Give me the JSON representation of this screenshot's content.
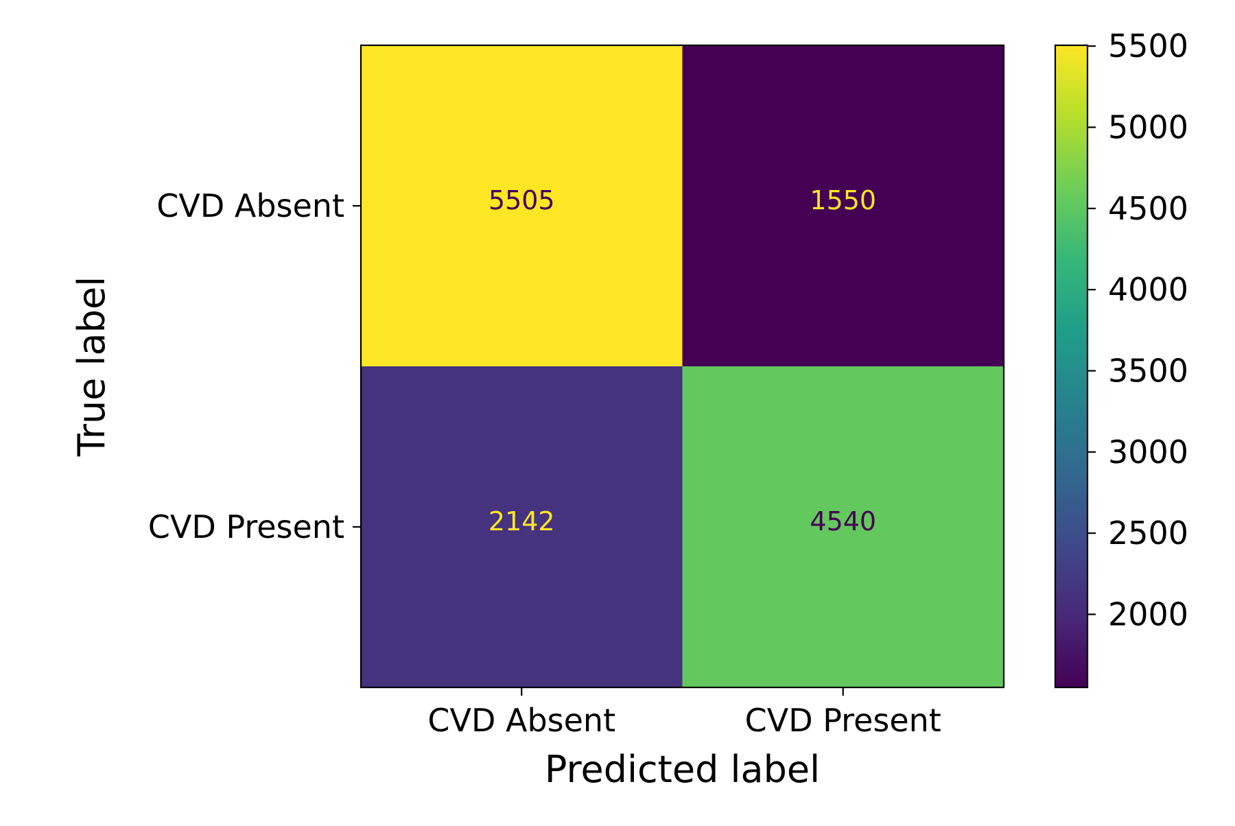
{
  "chart_data": {
    "type": "heatmap",
    "title": "",
    "xlabel": "Predicted label",
    "ylabel": "True label",
    "x_categories": [
      "CVD Absent",
      "CVD Present"
    ],
    "y_categories": [
      "CVD Absent",
      "CVD Present"
    ],
    "values": [
      [
        5505,
        1550
      ],
      [
        2142,
        4540
      ]
    ],
    "colormap": "viridis",
    "colorbar": {
      "range": [
        1550,
        5505
      ],
      "ticks": [
        2000,
        2500,
        3000,
        3500,
        4000,
        4500,
        5000,
        5500
      ]
    },
    "colors": {
      "cell_text_dark": "#440154",
      "cell_text_light": "#fde725"
    }
  }
}
